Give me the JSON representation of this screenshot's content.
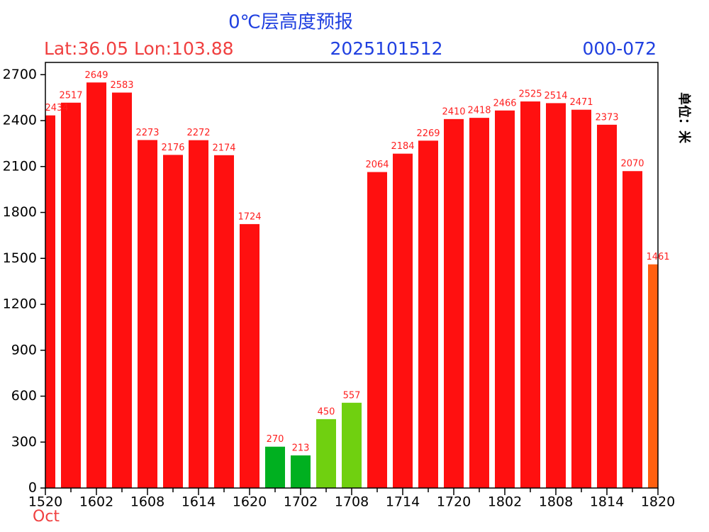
{
  "chart_data": {
    "type": "bar",
    "title": "0℃层高度预报",
    "subtitle_left": "Lat:36.05 Lon:103.88",
    "subtitle_center": "2025101512",
    "subtitle_right": "000-072",
    "unit_label": "单位：米",
    "x_sublabel": "Oct",
    "categories": [
      "1520",
      null,
      "1602",
      null,
      "1608",
      null,
      "1614",
      null,
      "1620",
      null,
      "1702",
      null,
      "1708",
      null,
      "1714",
      null,
      "1720",
      null,
      "1802",
      null,
      "1808",
      null,
      "1814",
      null,
      "1820"
    ],
    "values": [
      2434,
      2517,
      2649,
      2583,
      2273,
      2176,
      2272,
      2174,
      1724,
      270,
      213,
      450,
      557,
      2064,
      2184,
      2269,
      2410,
      2418,
      2466,
      2525,
      2514,
      2471,
      2373,
      2070,
      1461
    ],
    "colors": [
      "#ff1010",
      "#ff1010",
      "#ff1010",
      "#ff1010",
      "#ff1010",
      "#ff1010",
      "#ff1010",
      "#ff1010",
      "#ff1010",
      "#00b020",
      "#00b020",
      "#70d010",
      "#70d010",
      "#ff1010",
      "#ff1010",
      "#ff1010",
      "#ff1010",
      "#ff1010",
      "#ff1010",
      "#ff1010",
      "#ff1010",
      "#ff1010",
      "#ff1010",
      "#ff1010",
      "#ff6010"
    ],
    "ylim": [
      0,
      2780
    ],
    "yticks": [
      0,
      300,
      600,
      900,
      1200,
      1500,
      1800,
      2100,
      2400,
      2700
    ]
  }
}
